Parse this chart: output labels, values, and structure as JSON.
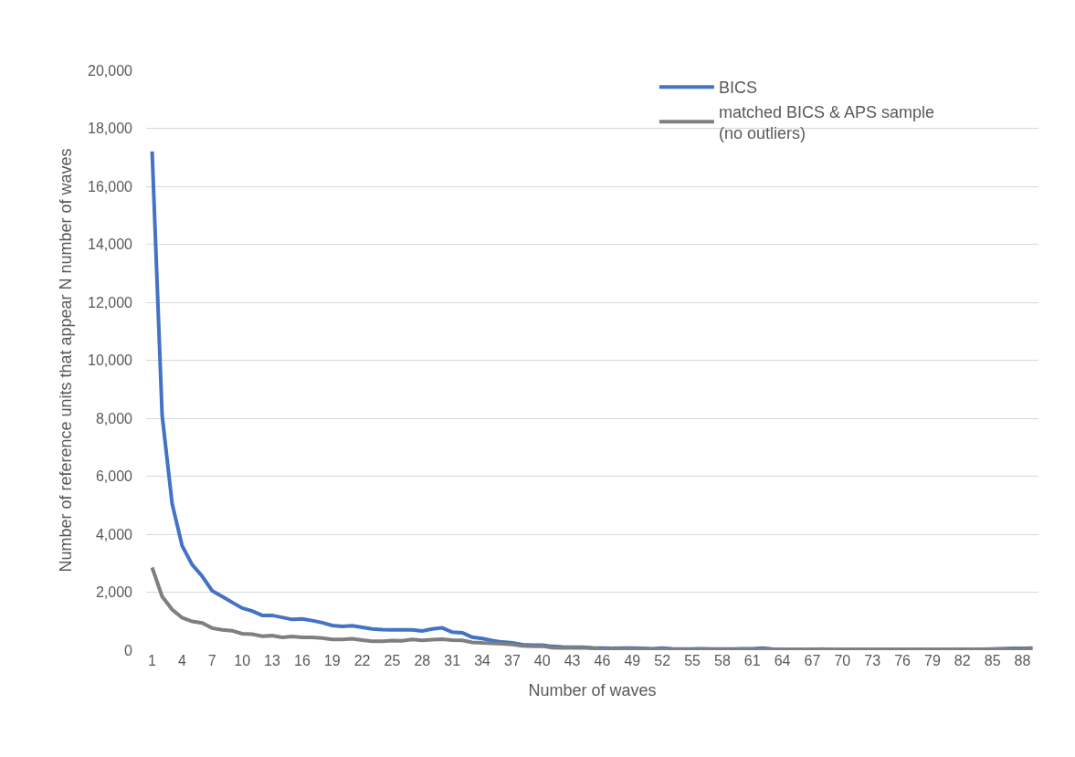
{
  "chart_data": {
    "type": "line",
    "xlabel": "Number of waves",
    "ylabel": "Number of reference units that appear N number of waves",
    "categories": [
      "1",
      null,
      null,
      "4",
      null,
      null,
      "7",
      null,
      null,
      "10",
      null,
      null,
      "13",
      null,
      null,
      "16",
      null,
      null,
      "19",
      null,
      null,
      "22",
      null,
      null,
      "25",
      null,
      null,
      "28",
      null,
      null,
      "31",
      null,
      null,
      "34",
      null,
      null,
      "37",
      null,
      null,
      "40",
      null,
      null,
      "43",
      null,
      null,
      "46",
      null,
      null,
      "49",
      null,
      null,
      "52",
      null,
      null,
      "55",
      null,
      null,
      "58",
      null,
      null,
      "61",
      null,
      null,
      "64",
      null,
      null,
      "67",
      null,
      null,
      "70",
      null,
      null,
      "73",
      null,
      null,
      "76",
      null,
      null,
      "79",
      null,
      null,
      "82",
      null,
      null,
      "85",
      null,
      null,
      "88",
      null
    ],
    "series": [
      {
        "name": "BICS",
        "color": "#4472c4",
        "values": [
          17200,
          8100,
          5050,
          3600,
          2950,
          2550,
          2050,
          1850,
          1650,
          1450,
          1350,
          1200,
          1200,
          1130,
          1060,
          1080,
          1020,
          950,
          850,
          820,
          840,
          790,
          730,
          710,
          700,
          700,
          700,
          660,
          730,
          770,
          620,
          600,
          450,
          400,
          330,
          280,
          250,
          190,
          170,
          170,
          130,
          110,
          100,
          100,
          80,
          70,
          60,
          70,
          70,
          60,
          50,
          70,
          50,
          40,
          40,
          50,
          40,
          40,
          40,
          50,
          50,
          70,
          40,
          20,
          20,
          20,
          20,
          30,
          20,
          20,
          20,
          20,
          20,
          20,
          20,
          20,
          20,
          20,
          20,
          20,
          20,
          30,
          20,
          30,
          40,
          50,
          60,
          60,
          70
        ]
      },
      {
        "name": "matched BICS & APS sample (no outliers)",
        "color": "#7f7f7f",
        "values": [
          2850,
          1850,
          1400,
          1120,
          990,
          940,
          760,
          700,
          670,
          570,
          550,
          480,
          500,
          440,
          470,
          440,
          440,
          420,
          370,
          370,
          390,
          350,
          310,
          310,
          330,
          320,
          370,
          340,
          360,
          380,
          350,
          340,
          270,
          250,
          240,
          220,
          200,
          150,
          130,
          140,
          90,
          80,
          80,
          80,
          70,
          30,
          50,
          50,
          40,
          40,
          30,
          30,
          30,
          20,
          20,
          30,
          20,
          20,
          20,
          30,
          30,
          30,
          20,
          20,
          20,
          20,
          20,
          40,
          10,
          20,
          20,
          20,
          20,
          20,
          20,
          20,
          20,
          20,
          20,
          20,
          20,
          30,
          20,
          20,
          30,
          40,
          50,
          50,
          60
        ]
      }
    ],
    "ylim": [
      0,
      20000
    ],
    "yticks": [
      0,
      {
        "value": 2000,
        "label": "2,000"
      },
      {
        "value": 4000,
        "label": "4,000"
      },
      {
        "value": 6000,
        "label": "6,000"
      },
      {
        "value": 8000,
        "label": "8,000"
      },
      {
        "value": 10000,
        "label": "10,000"
      },
      {
        "value": 12000,
        "label": "12,000"
      },
      {
        "value": 14000,
        "label": "14,000"
      },
      {
        "value": 16000,
        "label": "16,000"
      },
      {
        "value": 18000,
        "label": "18,000"
      },
      {
        "value": 20000,
        "label": "20,000"
      }
    ],
    "grid": "y",
    "legend": "top right",
    "marker": "none",
    "line_style": "solid"
  }
}
